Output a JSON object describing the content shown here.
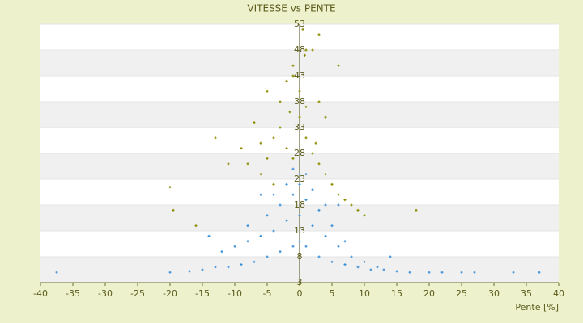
{
  "chart_data": {
    "type": "scatter",
    "title": "VITESSE vs PENTE",
    "x_label": "Pente [%]",
    "xlim": [
      -40,
      40
    ],
    "xticks": [
      -40,
      -35,
      -30,
      -25,
      -20,
      -15,
      -10,
      -5,
      0,
      5,
      10,
      15,
      20,
      25,
      30,
      35,
      40
    ],
    "ylim": [
      3,
      53
    ],
    "yticks": [
      3,
      8,
      13,
      18,
      23,
      28,
      33,
      38,
      43,
      48,
      53
    ],
    "grid": true,
    "series": [
      {
        "color": "#3a8fd9",
        "x": [
          -37.5,
          -20,
          -17,
          -15,
          -13,
          -11,
          -9,
          -7,
          -5,
          -3,
          -1,
          0,
          1,
          3,
          5,
          7,
          9,
          11,
          13,
          15,
          17,
          20,
          22,
          25,
          27,
          33,
          37,
          -12,
          -10,
          -8,
          -6,
          -4,
          -2,
          0,
          2,
          4,
          6,
          8,
          10,
          12,
          -8,
          -5,
          -3,
          -1,
          1,
          3,
          5,
          7,
          -4,
          -2,
          0,
          2,
          4,
          -14,
          -6,
          6,
          14,
          -1,
          1,
          0
        ],
        "values": [
          5,
          5,
          5.2,
          5.5,
          6,
          6,
          6.5,
          7,
          8,
          9,
          10,
          11,
          10,
          8,
          7,
          6.5,
          6,
          5.5,
          5.5,
          5.2,
          5,
          5,
          5,
          5,
          5,
          5,
          5,
          9,
          10,
          11,
          12,
          13,
          15,
          16,
          14,
          12,
          10,
          8,
          7,
          6,
          14,
          16,
          18,
          20,
          19,
          17,
          14,
          11,
          20,
          22,
          24,
          21,
          18,
          12,
          20,
          18,
          8,
          25,
          24,
          22
        ]
      },
      {
        "color": "#8c8c00",
        "x": [
          -20,
          -19.5,
          -16,
          -13,
          -11,
          -9,
          -7,
          -6,
          -5,
          -4,
          -3,
          -2,
          -1,
          0,
          1,
          2,
          3,
          4,
          5,
          6,
          7,
          8,
          9,
          10,
          18,
          -3,
          -2,
          -1,
          0,
          1,
          2,
          3,
          -1,
          0.5,
          1,
          6,
          2.5,
          -1.5,
          0.8,
          -8,
          -5,
          4,
          3,
          -6,
          -4
        ],
        "values": [
          21.5,
          17,
          14,
          31,
          26,
          29,
          34,
          30,
          27,
          31,
          33,
          29,
          27,
          35,
          31,
          28,
          26,
          24,
          22,
          20,
          19,
          18,
          17,
          16,
          17,
          38,
          42,
          45,
          40,
          37,
          48,
          51,
          43,
          52,
          48,
          45,
          30,
          36,
          47,
          26,
          40,
          35,
          38,
          24,
          22
        ]
      }
    ]
  }
}
